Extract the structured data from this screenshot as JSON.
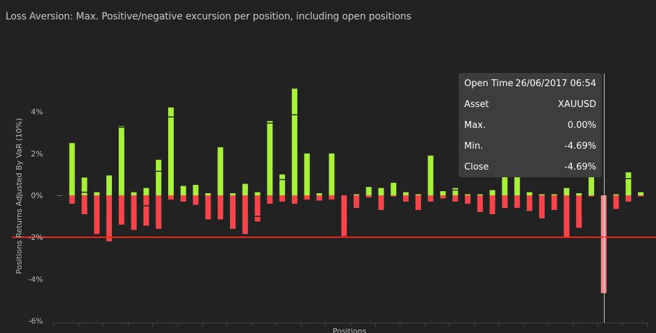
{
  "chart_data": {
    "type": "bar",
    "title": "Loss Aversion: Max. Positive/negative excursion per position, including open positions",
    "xlabel": "Positions",
    "ylabel": "Positions Returns Adjusted By VaR (10%)",
    "ylim": [
      -6,
      6
    ],
    "yticks": [
      4,
      2,
      0,
      -2,
      -4,
      -6
    ],
    "ytick_labels": [
      "4%",
      "2%",
      "0%",
      "-2%",
      "-4%",
      "-6%"
    ],
    "threshold": -2,
    "colors": {
      "positive": "#a6f13a",
      "negative": "#f7454a",
      "threshold": "#f02a1e",
      "highlight": "#f48c8c",
      "grid": "#444444"
    },
    "highlight_index": 44,
    "max": [
      0,
      2.5,
      0.85,
      0.15,
      0.95,
      3.3,
      0.15,
      0.35,
      1.7,
      4.2,
      0.45,
      0.5,
      0.1,
      2.3,
      0.1,
      0.55,
      0.15,
      3.55,
      1.0,
      5.1,
      2.0,
      0.1,
      2.0,
      0,
      0.05,
      0.4,
      0.35,
      0.6,
      0.15,
      0.05,
      1.9,
      0.2,
      0.35,
      0.05,
      0.05,
      0.25,
      0.95,
      0.95,
      0.15,
      0.05,
      0.05,
      0.35,
      0.1,
      1.95,
      0,
      0.05,
      1.1,
      0.15
    ],
    "min": [
      0,
      -0.4,
      -0.9,
      -1.85,
      -2.2,
      -1.4,
      -1.65,
      -1.45,
      -1.6,
      -0.2,
      -0.3,
      -0.45,
      -1.15,
      -1.15,
      -1.6,
      -1.85,
      -1.25,
      -0.4,
      -0.3,
      -0.4,
      -0.2,
      -0.25,
      -0.2,
      -1.95,
      -0.6,
      -0.1,
      -0.7,
      -0.05,
      -0.3,
      -0.7,
      -0.3,
      -0.15,
      -0.3,
      -0.4,
      -0.8,
      -0.9,
      -0.6,
      -0.6,
      -0.75,
      -1.1,
      -0.7,
      -2.0,
      -1.55,
      -0.05,
      -4.7,
      -0.65,
      -0.3,
      -0.05
    ],
    "close": [
      0,
      null,
      0.15,
      null,
      -2.0,
      3.25,
      null,
      -0.5,
      1.15,
      3.75,
      null,
      null,
      null,
      null,
      null,
      null,
      -1.0,
      3.45,
      0.75,
      3.85,
      null,
      null,
      null,
      null,
      null,
      null,
      null,
      null,
      null,
      null,
      null,
      null,
      0.25,
      null,
      null,
      null,
      null,
      null,
      null,
      null,
      null,
      null,
      null,
      null,
      -4.7,
      null,
      0.8,
      null
    ]
  },
  "tooltip": {
    "rows": [
      {
        "key": "Open Time",
        "value": "26/06/2017 06:54"
      },
      {
        "key": "Asset",
        "value": "XAUUSD"
      },
      {
        "key": "Max.",
        "value": "0.00%"
      },
      {
        "key": "Min.",
        "value": "-4.69%"
      },
      {
        "key": "Close",
        "value": "-4.69%"
      }
    ]
  }
}
